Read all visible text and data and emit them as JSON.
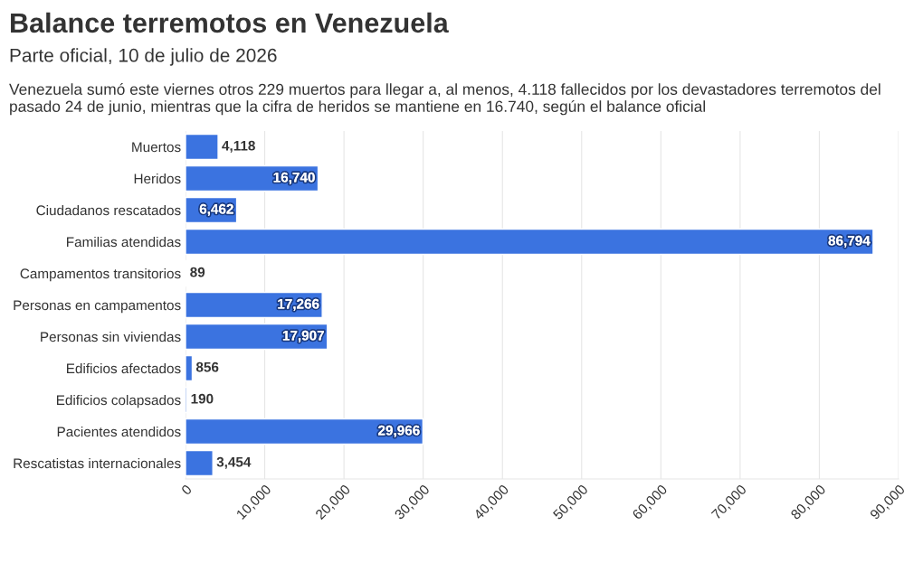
{
  "chart_data": {
    "type": "bar",
    "orientation": "horizontal",
    "title": "Balance terremotos en Venezuela",
    "subtitle": "Parte oficial, 10 de julio de 2026",
    "annotations": [
      "Venezuela sumó este viernes otros 229 muertos para llegar a, al menos, 4.118 fallecidos por los devastadores terremotos del pasado 24 de junio, mientras que la cifra de heridos se mantiene en 16.740, según el balance oficial"
    ],
    "categories": [
      "Muertos",
      "Heridos",
      "Ciudadanos rescatados",
      "Familias atendidas",
      "Campamentos transitorios",
      "Personas en campamentos",
      "Personas sin viviendas",
      "Edificios afectados",
      "Edificios colapsados",
      "Pacientes atendidos",
      "Rescatistas internacionales"
    ],
    "values": [
      4118,
      16740,
      6462,
      86794,
      89,
      17266,
      17907,
      856,
      190,
      29966,
      3454
    ],
    "value_labels": [
      "4,118",
      "16,740",
      "6,462",
      "86,794",
      "89",
      "17,266",
      "17,907",
      "856",
      "190",
      "29,966",
      "3,454"
    ],
    "color": "#3b73e0",
    "xlim": [
      0,
      90000
    ],
    "xticks": [
      {
        "value": 0,
        "label": "0"
      },
      {
        "value": 10000,
        "label": "10,000"
      },
      {
        "value": 20000,
        "label": "20,000"
      },
      {
        "value": 30000,
        "label": "30,000"
      },
      {
        "value": 40000,
        "label": "40,000"
      },
      {
        "value": 50000,
        "label": "50,000"
      },
      {
        "value": 60000,
        "label": "60,000"
      },
      {
        "value": 70000,
        "label": "70,000"
      },
      {
        "value": 80000,
        "label": "80,000"
      },
      {
        "value": 90000,
        "label": "90,000"
      }
    ],
    "grid": "x",
    "legend": false
  }
}
